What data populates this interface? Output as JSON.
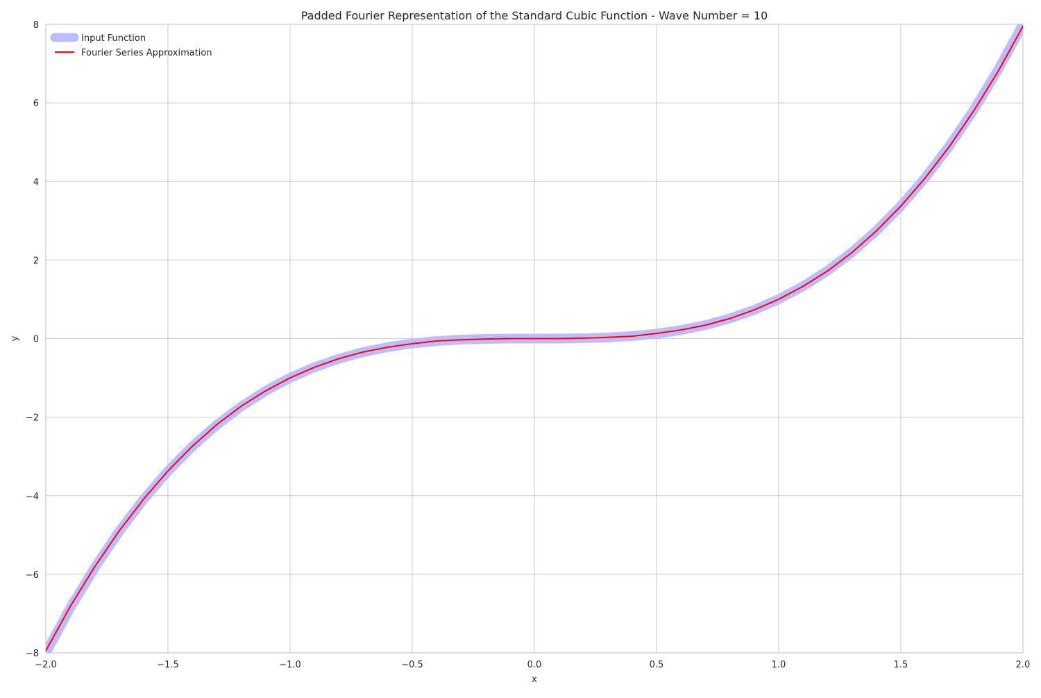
{
  "chart_data": {
    "type": "line",
    "title": "Padded Fourier Representation of the Standard Cubic Function - Wave Number = 10",
    "xlabel": "x",
    "ylabel": "y",
    "xlim": [
      -2.0,
      2.0
    ],
    "ylim": [
      -8,
      8
    ],
    "xticks": [
      -2.0,
      -1.5,
      -1.0,
      -0.5,
      0.0,
      0.5,
      1.0,
      1.5,
      2.0
    ],
    "xtick_labels": [
      "−2.0",
      "−1.5",
      "−1.0",
      "−0.5",
      "0.0",
      "0.5",
      "1.0",
      "1.5",
      "2.0"
    ],
    "yticks": [
      -8,
      -6,
      -4,
      -2,
      0,
      2,
      4,
      6,
      8
    ],
    "ytick_labels": [
      "−8",
      "−6",
      "−4",
      "−2",
      "0",
      "2",
      "4",
      "6",
      "8"
    ],
    "grid": true,
    "legend_position": "upper-left",
    "function": "x^3",
    "sample_count": 81,
    "series": [
      {
        "name": "Input Function",
        "color": "#bcbcff",
        "style": "thick",
        "x": [
          -2.0,
          -1.9,
          -1.8,
          -1.7,
          -1.6,
          -1.5,
          -1.4,
          -1.3,
          -1.2,
          -1.1,
          -1.0,
          -0.9,
          -0.8,
          -0.7,
          -0.6,
          -0.5,
          -0.4,
          -0.3,
          -0.2,
          -0.1,
          0.0,
          0.1,
          0.2,
          0.3,
          0.4,
          0.5,
          0.6,
          0.7,
          0.8,
          0.9,
          1.0,
          1.1,
          1.2,
          1.3,
          1.4,
          1.5,
          1.6,
          1.7,
          1.8,
          1.9,
          2.0
        ],
        "y": [
          -8.0,
          -6.859,
          -5.832,
          -4.913,
          -4.096,
          -3.375,
          -2.744,
          -2.197,
          -1.728,
          -1.331,
          -1.0,
          -0.729,
          -0.512,
          -0.343,
          -0.216,
          -0.125,
          -0.064,
          -0.027,
          -0.008,
          -0.001,
          0.0,
          0.001,
          0.008,
          0.027,
          0.064,
          0.125,
          0.216,
          0.343,
          0.512,
          0.729,
          1.0,
          1.331,
          1.728,
          2.197,
          2.744,
          3.375,
          4.096,
          4.913,
          5.832,
          6.859,
          8.0
        ]
      },
      {
        "name": "Fourier Series Approximation",
        "color": "#ff0000",
        "style": "thin",
        "x": [
          -2.0,
          -1.9,
          -1.8,
          -1.7,
          -1.6,
          -1.5,
          -1.4,
          -1.3,
          -1.2,
          -1.1,
          -1.0,
          -0.9,
          -0.8,
          -0.7,
          -0.6,
          -0.5,
          -0.4,
          -0.3,
          -0.2,
          -0.1,
          0.0,
          0.1,
          0.2,
          0.3,
          0.4,
          0.5,
          0.6,
          0.7,
          0.8,
          0.9,
          1.0,
          1.1,
          1.2,
          1.3,
          1.4,
          1.5,
          1.6,
          1.7,
          1.8,
          1.9,
          2.0
        ],
        "y": [
          -7.95,
          -6.82,
          -5.81,
          -4.9,
          -4.09,
          -3.37,
          -2.74,
          -2.19,
          -1.72,
          -1.33,
          -1.0,
          -0.73,
          -0.51,
          -0.34,
          -0.22,
          -0.13,
          -0.06,
          -0.03,
          -0.01,
          0.0,
          0.0,
          0.0,
          0.01,
          0.03,
          0.06,
          0.13,
          0.22,
          0.34,
          0.51,
          0.73,
          1.0,
          1.33,
          1.72,
          2.19,
          2.74,
          3.37,
          4.09,
          4.9,
          5.81,
          6.82,
          7.95
        ]
      }
    ]
  },
  "colors": {
    "input_function": "#bcbcff",
    "fourier_series": "#ff0000",
    "grid": "#cbcbcb",
    "text": "#262626"
  }
}
